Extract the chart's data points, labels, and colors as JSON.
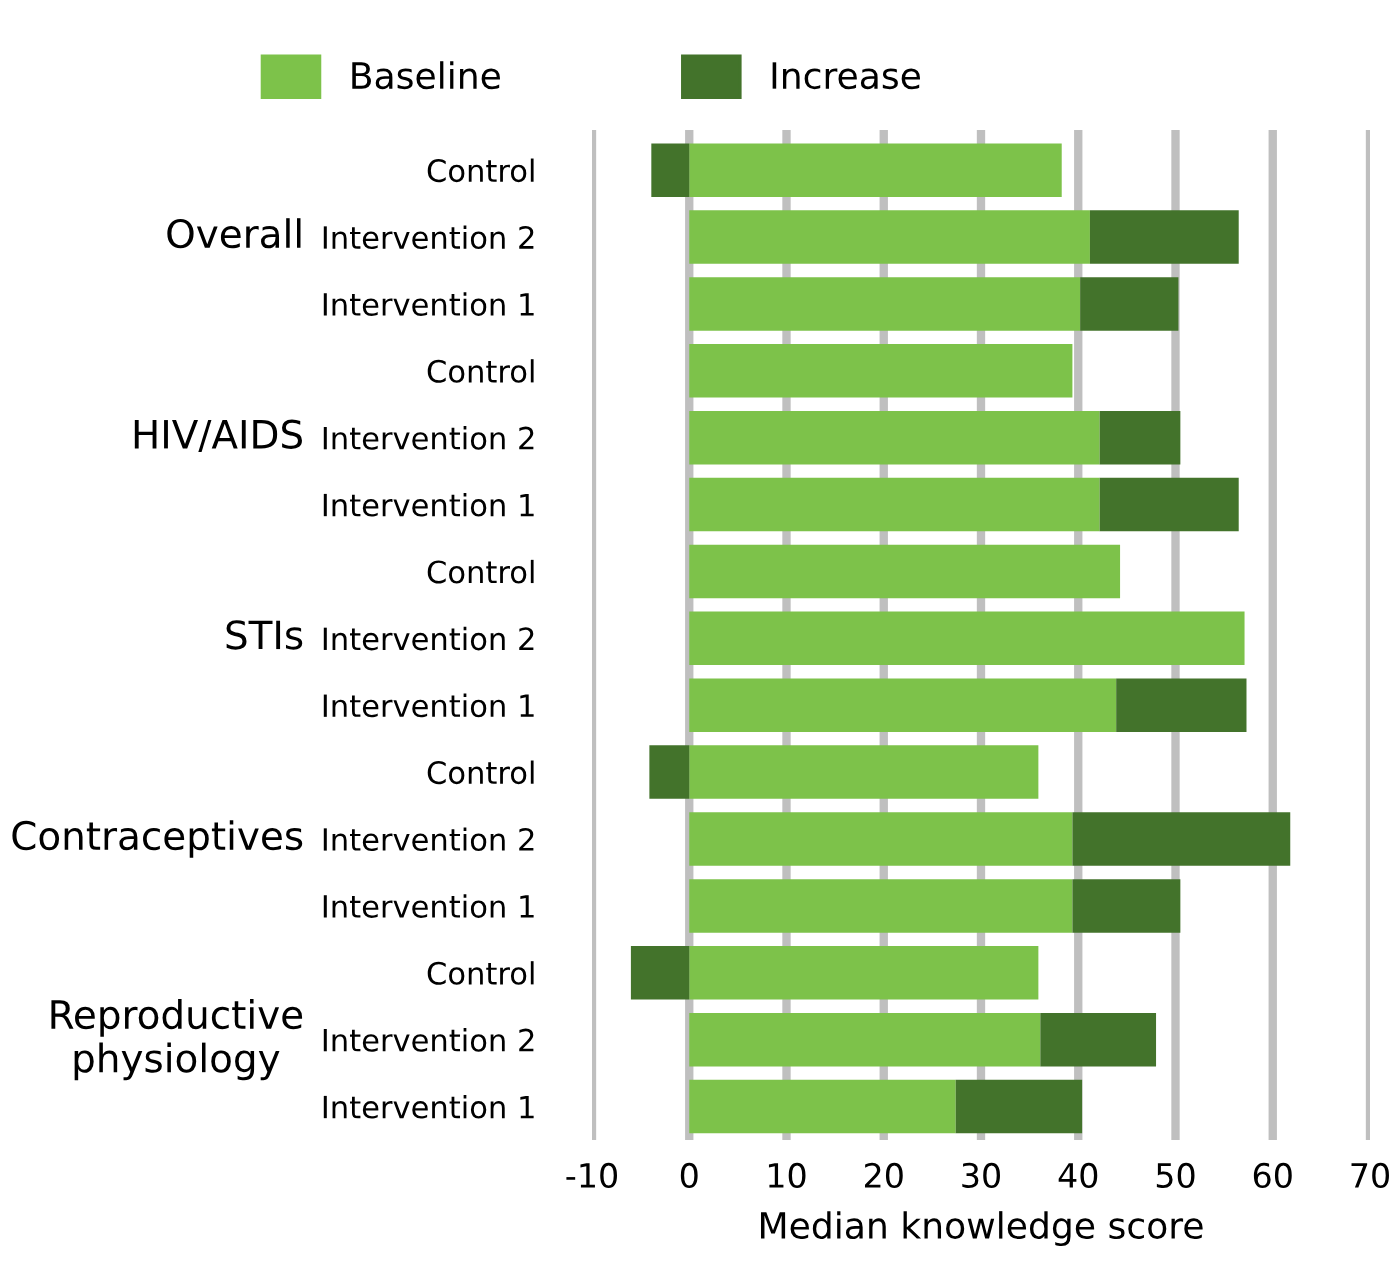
{
  "chart_data": {
    "type": "bar",
    "orientation": "horizontal",
    "stacked": true,
    "categories": [
      "Control",
      "Intervention 2",
      "Intervention 1",
      "Control",
      "Intervention 2",
      "Intervention 1",
      "Control",
      "Intervention 2",
      "Intervention 1",
      "Control",
      "Intervention 2",
      "Intervention 1",
      "Control",
      "Intervention 2",
      "Intervention 1"
    ],
    "series": [
      {
        "name": "Baseline",
        "color": "#7dc24a",
        "values": [
          38.3,
          41.2,
          40.2,
          39.4,
          42.2,
          42.2,
          44.3,
          57.1,
          43.9,
          35.9,
          39.4,
          39.4,
          35.9,
          36.1,
          27.4
        ]
      },
      {
        "name": "Increase",
        "color": "#43732b",
        "values": [
          -3.9,
          15.3,
          10.1,
          0,
          8.3,
          14.3,
          0,
          0,
          13.4,
          -4.1,
          22.4,
          11.1,
          -6.0,
          11.9,
          13.0
        ]
      }
    ],
    "annotations": [
      "Overall",
      "HIV/AIDS",
      "STIs",
      "Contraceptives",
      "Reproductive\nphysiology"
    ],
    "xlabel": "Median knowledge score",
    "xlim": [
      -10,
      70
    ],
    "xticks": [
      -10,
      0,
      10,
      20,
      30,
      40,
      50,
      60,
      70
    ],
    "grid": "x",
    "legend": "top"
  }
}
